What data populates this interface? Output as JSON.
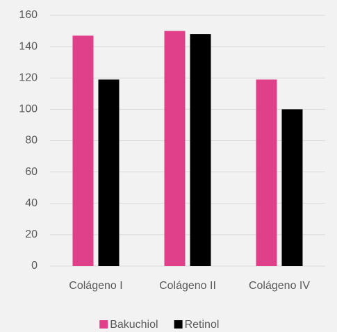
{
  "chart_data": {
    "type": "bar",
    "categories": [
      "Colágeno I",
      "Colágeno II",
      "Colágeno IV"
    ],
    "series": [
      {
        "name": "Bakuchiol",
        "color": "#e0408a",
        "values": [
          147,
          150,
          119
        ]
      },
      {
        "name": "Retinol",
        "color": "#000000",
        "values": [
          119,
          148,
          100
        ]
      }
    ],
    "ylim": [
      0,
      160
    ],
    "yticks": [
      0,
      20,
      40,
      60,
      80,
      100,
      120,
      140,
      160
    ],
    "grid": true,
    "legend": "bottom"
  }
}
